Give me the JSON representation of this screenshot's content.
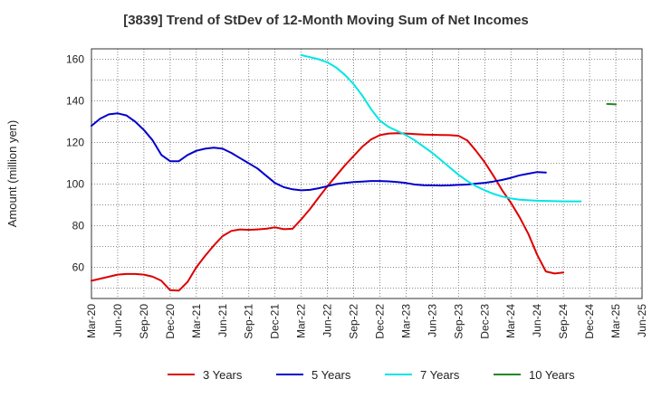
{
  "chart_data": {
    "type": "line",
    "title": "[3839]  Trend of StDev of 12-Month Moving Sum of Net Incomes",
    "xlabel": "",
    "ylabel": "Amount (million yen)",
    "x_ticks": [
      "Mar-20",
      "Jun-20",
      "Sep-20",
      "Dec-20",
      "Mar-21",
      "Jun-21",
      "Sep-21",
      "Dec-21",
      "Mar-22",
      "Jun-22",
      "Sep-22",
      "Dec-22",
      "Mar-23",
      "Jun-23",
      "Sep-23",
      "Dec-23",
      "Mar-24",
      "Jun-24",
      "Sep-24",
      "Dec-24",
      "Mar-25",
      "Jun-25"
    ],
    "y_ticks": [
      60,
      80,
      100,
      120,
      140,
      160
    ],
    "ylim": [
      45,
      165
    ],
    "grid": true,
    "legend_position": "bottom",
    "series": [
      {
        "name": "3 Years",
        "color": "#dd0000",
        "start": "Mar-20",
        "values": [
          53.5,
          54.5,
          55.5,
          56.5,
          56.8,
          56.8,
          56.5,
          55.5,
          53.5,
          49,
          48.8,
          53,
          60,
          65.5,
          70.5,
          75,
          77.5,
          78.2,
          78,
          78.2,
          78.5,
          79.2,
          78.3,
          78.5,
          83,
          88,
          93.5,
          99,
          104,
          109,
          113.5,
          118,
          121.5,
          123.5,
          124.3,
          124.5,
          124.3,
          124,
          123.8,
          123.7,
          123.6,
          123.5,
          123.2,
          121,
          116,
          110.5,
          104,
          97,
          91,
          84,
          76,
          66,
          58,
          57,
          57.5
        ]
      },
      {
        "name": "5 Years",
        "color": "#0000cc",
        "start": "Mar-20",
        "values": [
          128,
          131.5,
          133.5,
          134,
          133,
          130,
          126,
          121,
          114,
          111,
          111,
          114,
          116,
          117,
          117.5,
          117,
          115,
          112.5,
          110,
          107.5,
          104,
          100.5,
          98.5,
          97.5,
          97,
          97.2,
          98,
          99,
          100,
          100.5,
          101,
          101.2,
          101.5,
          101.5,
          101.3,
          101,
          100.5,
          99.8,
          99.5,
          99.4,
          99.3,
          99.4,
          99.6,
          99.8,
          100.2,
          100.6,
          101.2,
          102,
          103,
          104.2,
          105,
          105.8,
          105.5
        ]
      },
      {
        "name": "7 Years",
        "color": "#00e5e5",
        "start": "Mar-22",
        "values": [
          162,
          161,
          160,
          158.5,
          156,
          152.5,
          148,
          142.5,
          136,
          130.5,
          127.5,
          125.5,
          123.5,
          121,
          118,
          115,
          111.5,
          108,
          104.5,
          101.5,
          99,
          97,
          95.3,
          94,
          93.1,
          92.5,
          92.2,
          92,
          91.9,
          91.8,
          91.7,
          91.7,
          91.7
        ]
      },
      {
        "name": "10 Years",
        "color": "#228822",
        "start": "Feb-25",
        "values": [
          138.5,
          138.3
        ]
      }
    ]
  }
}
